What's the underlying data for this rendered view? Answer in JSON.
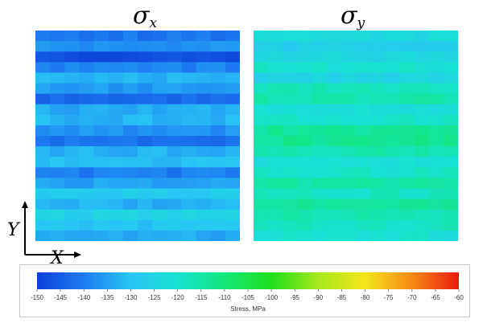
{
  "panels": [
    {
      "symbol": "σ",
      "subscript": "x"
    },
    {
      "symbol": "σ",
      "subscript": "y"
    }
  ],
  "axes": {
    "y_label": "Y",
    "x_label": "X"
  },
  "colorbar": {
    "label": "Stress, MPa",
    "min": -150,
    "max": -60,
    "ticks": [
      -150,
      -145,
      -140,
      -135,
      -130,
      -125,
      -120,
      -115,
      -110,
      -105,
      -100,
      -95,
      -90,
      -85,
      -80,
      -75,
      -70,
      -65,
      -60
    ],
    "stops": [
      {
        "value": -150,
        "color": "#0b3fd8"
      },
      {
        "value": -140,
        "color": "#1d7cf2"
      },
      {
        "value": -130,
        "color": "#28c6f5"
      },
      {
        "value": -120,
        "color": "#18e2d2"
      },
      {
        "value": -110,
        "color": "#12e87a"
      },
      {
        "value": -100,
        "color": "#1ee01a"
      },
      {
        "value": -90,
        "color": "#a7e81a"
      },
      {
        "value": -80,
        "color": "#f4e51a"
      },
      {
        "value": -70,
        "color": "#f78a16"
      },
      {
        "value": -60,
        "color": "#e81a10"
      }
    ]
  },
  "chart_data": {
    "type": "heatmap",
    "value_label": "Stress, MPa",
    "value_range": [
      -150,
      -60
    ],
    "maps": [
      {
        "name": "σx",
        "row_stress_profile": [
          -141,
          -137,
          -147,
          -139,
          -133,
          -136,
          -143,
          -134,
          -132,
          -137,
          -142,
          -133,
          -131,
          -140,
          -135,
          -128,
          -133,
          -126,
          -130,
          -134
        ]
      },
      {
        "name": "σy",
        "row_stress_profile": [
          -123,
          -127,
          -124,
          -120,
          -125,
          -118,
          -116,
          -122,
          -119,
          -114,
          -113,
          -117,
          -121,
          -119,
          -115,
          -118,
          -113,
          -116,
          -118,
          -121
        ]
      }
    ]
  }
}
